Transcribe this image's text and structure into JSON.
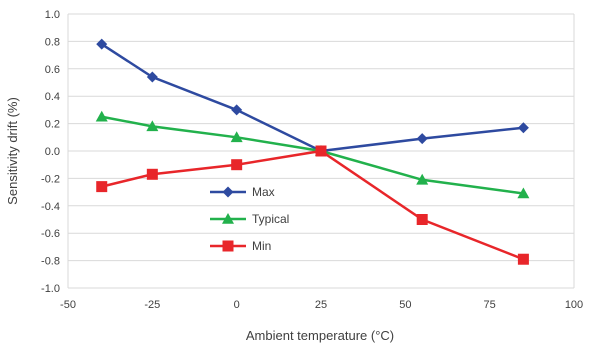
{
  "chart_data": {
    "type": "line",
    "xlabel": "Ambient temperature (°C)",
    "ylabel": "Sensitivity drift (%)",
    "xlim": [
      -50,
      100
    ],
    "ylim": [
      -1.0,
      1.0
    ],
    "x_ticks": [
      -50,
      -25,
      0,
      25,
      50,
      75,
      100
    ],
    "x_tick_labels": [
      "-50",
      "-25",
      "0",
      "25",
      "50",
      "75",
      "100"
    ],
    "y_ticks": [
      1.0,
      0.8,
      0.6,
      0.4,
      0.2,
      0.0,
      -0.2,
      -0.4,
      -0.6,
      -0.8,
      -1.0
    ],
    "y_tick_labels": [
      "1.0",
      "0.8",
      "0.6",
      "0.4",
      "0.2",
      "0.0",
      "-0.2",
      "-0.4",
      "-0.6",
      "-0.8",
      "-1.0"
    ],
    "grid": "horizontal",
    "legend_position": "center-left",
    "x": [
      -40,
      -25,
      0,
      25,
      55,
      85
    ],
    "series": [
      {
        "name": "Max",
        "color": "#2E4AA0",
        "marker": "diamond",
        "values": [
          0.78,
          0.54,
          0.3,
          0.0,
          0.09,
          0.17
        ]
      },
      {
        "name": "Typical",
        "color": "#22B14C",
        "marker": "triangle",
        "values": [
          0.25,
          0.18,
          0.1,
          0.0,
          -0.21,
          -0.31
        ]
      },
      {
        "name": "Min",
        "color": "#E8262A",
        "marker": "square",
        "values": [
          -0.26,
          -0.17,
          -0.1,
          0.0,
          -0.5,
          -0.79
        ]
      }
    ]
  }
}
